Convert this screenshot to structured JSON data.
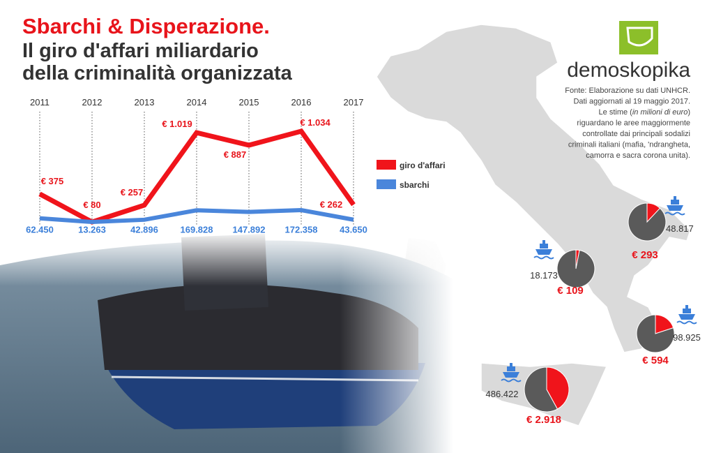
{
  "header": {
    "title": "Sbarchi & Disperazione.",
    "subtitle_lines": [
      "Il giro d'affari miliardario",
      "della criminalità organizzata"
    ]
  },
  "logo": "demoskopika",
  "source": [
    "Fonte: Elaborazione su dati UNHCR.",
    "Dati aggiornati al 19 maggio 2017.",
    [
      "Le stime (",
      "in milioni di euro",
      ")"
    ],
    "riguardano le aree maggiormente",
    "controllate dai principali sodalizi",
    "criminali italiani (mafia, 'ndrangheta,",
    "camorra e sacra corona unita)."
  ],
  "chart_data": [
    {
      "type": "line",
      "categories": [
        "2011",
        "2012",
        "2013",
        "2014",
        "2015",
        "2016",
        "2017"
      ],
      "series": [
        {
          "name": "giro d'affari",
          "color": "#f0141b",
          "values": [
            375,
            80,
            257,
            1019,
            887,
            1034,
            262
          ],
          "value_labels": [
            "€ 375",
            "€ 80",
            "€ 257",
            "€ 1.019",
            "€ 887",
            "€ 1.034",
            "€ 262"
          ]
        },
        {
          "name": "sbarchi",
          "color": "#4a86db",
          "axis": "y2",
          "values": [
            62450,
            13263,
            42896,
            169828,
            147892,
            172358,
            43650
          ],
          "value_labels": [
            "62.450",
            "13.263",
            "42.896",
            "169.828",
            "147.892",
            "172.358",
            "43.650"
          ]
        }
      ]
    },
    {
      "type": "pie",
      "colors": [
        "#f0141b",
        "#5a5a5a"
      ],
      "pies": [
        {
          "values": [
            12,
            88
          ],
          "landings": 48817,
          "landings_label": "48.817",
          "amount": 293,
          "amount_label": "€ 293"
        },
        {
          "values": [
            3,
            97
          ],
          "landings": 18173,
          "landings_label": "18.173",
          "amount": 109,
          "amount_label": "€ 109"
        },
        {
          "values": [
            20,
            80
          ],
          "landings": 98925,
          "landings_label": "98.925",
          "amount": 594,
          "amount_label": "€ 594"
        },
        {
          "values": [
            42,
            58
          ],
          "landings": 486422,
          "landings_label": "486.422",
          "amount": 2918,
          "amount_label": "€ 2.918"
        }
      ]
    }
  ]
}
